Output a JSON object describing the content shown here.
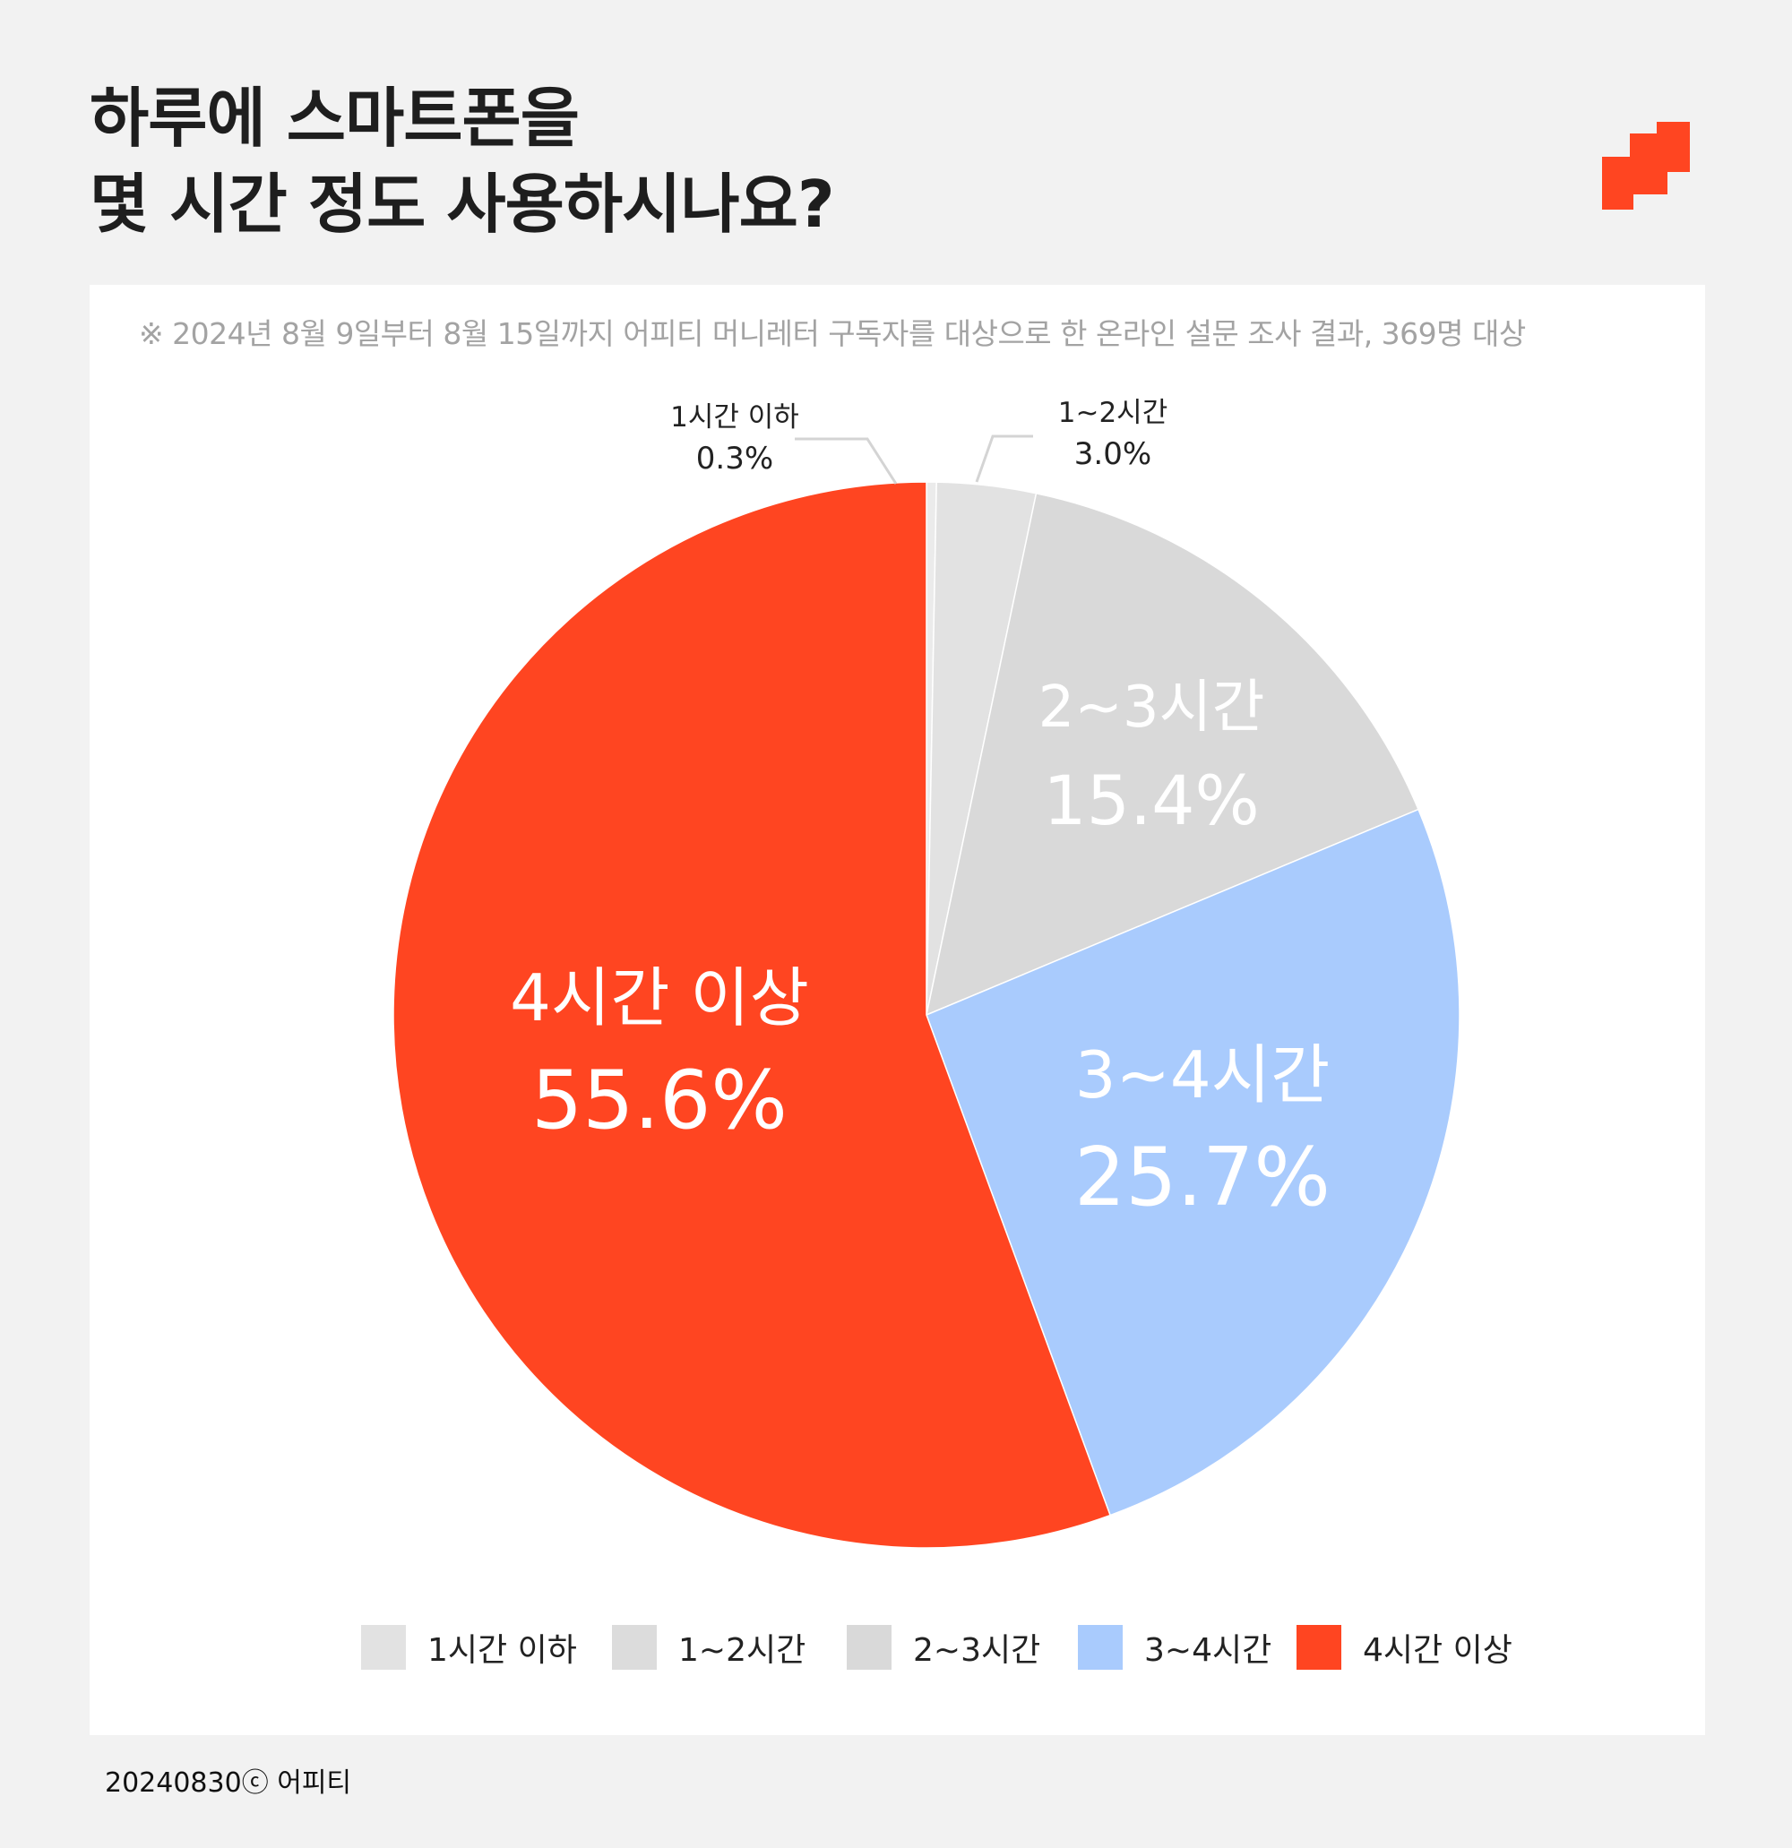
{
  "header": {
    "title_line1": "하루에 스마트폰을",
    "title_line2": "몇 시간 정도 사용하시나요?",
    "logo_color": "#ff4521"
  },
  "card": {
    "note": "※ 2024년 8월 9일부터 8월 15일까지 어피티 머니레터 구독자를 대상으로 한 온라인 설문 조사 결과, 369명 대상"
  },
  "footer": {
    "text": "20240830ⓒ 어피티"
  },
  "chart_data": {
    "type": "pie",
    "title": "하루에 스마트폰을 몇 시간 정도 사용하시나요?",
    "subtitle": "※ 2024년 8월 9일부터 8월 15일까지 어피티 머니레터 구독자를 대상으로 한 온라인 설문 조사 결과, 369명 대상",
    "start_angle": "12 o'clock, clockwise",
    "legend_position": "bottom",
    "categories": [
      "1시간 이하",
      "1~2시간",
      "2~3시간",
      "3~4시간",
      "4시간 이상"
    ],
    "values": [
      0.3,
      3.0,
      15.4,
      25.7,
      55.6
    ],
    "value_labels": [
      "0.3%",
      "3.0%",
      "15.4%",
      "25.7%",
      "55.6%"
    ],
    "colors": [
      "#ebebeb",
      "#e2e2e2",
      "#d9d9d9",
      "#a9cbfd",
      "#ff4521"
    ],
    "unit": "%"
  },
  "legend": {
    "items": [
      {
        "label": "1시간 이하",
        "color": "#e2e2e2"
      },
      {
        "label": "1~2시간",
        "color": "#dcdcdc"
      },
      {
        "label": "2~3시간",
        "color": "#d9d9d9"
      },
      {
        "label": "3~4시간",
        "color": "#a9cbfd"
      },
      {
        "label": "4시간 이상",
        "color": "#ff4521"
      }
    ]
  }
}
